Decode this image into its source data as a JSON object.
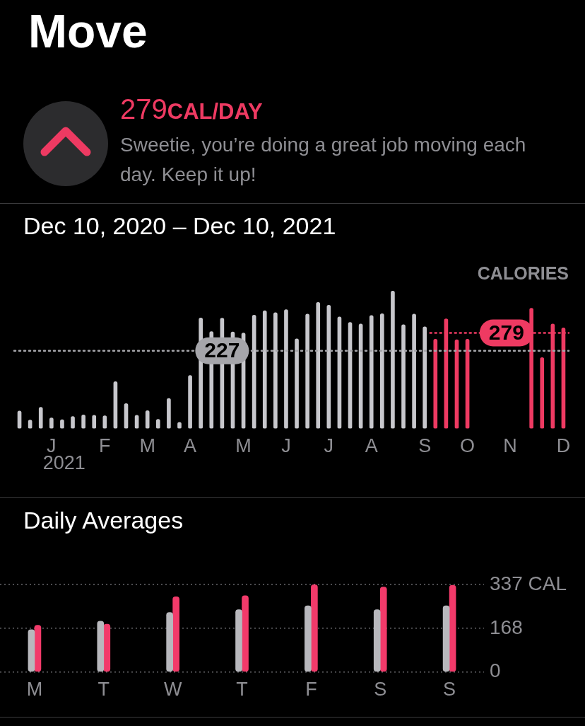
{
  "chart_data": [
    {
      "type": "other",
      "title": "Move",
      "annotations": [
        "279",
        "CAL/DAY",
        "Sweetie, you’re doing a great job moving each day. Keep it up!"
      ]
    },
    {
      "type": "bar",
      "title": "Dec 10, 2020 – Dec 10, 2021",
      "ylabel": "CALORIES",
      "stacked": true,
      "tick_labels": "x",
      "grid": false,
      "legend": false,
      "ylim": [
        0,
        404
      ],
      "categories": [
        null,
        null,
        null,
        "J",
        null,
        null,
        null,
        null,
        "F",
        null,
        null,
        null,
        "M",
        null,
        null,
        null,
        "A",
        null,
        null,
        null,
        null,
        "M",
        null,
        null,
        null,
        "J",
        null,
        null,
        null,
        "J",
        null,
        null,
        null,
        "A",
        null,
        null,
        null,
        null,
        "S",
        null,
        null,
        null,
        "O",
        null,
        null,
        null,
        "N",
        null,
        null,
        null,
        null,
        "D"
      ],
      "series": [
        {
          "color": "#c7c7cc",
          "values": [
            51,
            25,
            62,
            31,
            26,
            35,
            40,
            39,
            37,
            137,
            73,
            39,
            52,
            27,
            88,
            18,
            155,
            323,
            283,
            322,
            282,
            279,
            331,
            344,
            338,
            347,
            262,
            334,
            368,
            360,
            326,
            310,
            305,
            330,
            335,
            401,
            303,
            334,
            297,
            null,
            null,
            null,
            null,
            null,
            null,
            null,
            null,
            null,
            null,
            null,
            null,
            null
          ]
        },
        {
          "color": "#ee3a62",
          "values": [
            null,
            null,
            null,
            null,
            null,
            null,
            null,
            null,
            null,
            null,
            null,
            null,
            null,
            null,
            null,
            null,
            null,
            null,
            null,
            null,
            null,
            null,
            null,
            null,
            null,
            null,
            null,
            null,
            null,
            null,
            null,
            null,
            null,
            null,
            null,
            null,
            null,
            null,
            null,
            261,
            320,
            259,
            261,
            null,
            null,
            null,
            null,
            null,
            351,
            207,
            305,
            294
          ]
        }
      ],
      "ref_lines": [
        {
          "axis": "y",
          "value": 227,
          "label": "227",
          "color": "#a5a5aa",
          "line_style": "dotted"
        },
        {
          "axis": "y",
          "value": 279,
          "label": "279",
          "color": "#ee3a62",
          "line_style": "dotted"
        }
      ],
      "annotations": [
        "2021"
      ]
    },
    {
      "type": "bar",
      "title": "Daily Averages",
      "categories": [
        "M",
        "T",
        "W",
        "T",
        "F",
        "S",
        "S"
      ],
      "legend": false,
      "grid": "y",
      "ylim": [
        0,
        337
      ],
      "yticks": [
        0,
        168,
        {
          "value": 337,
          "label": "337 CAL"
        }
      ],
      "series": [
        {
          "color": "#b8b8bd",
          "values": [
            163,
            196,
            229,
            240,
            255,
            240,
            255
          ]
        },
        {
          "color": "#f23a6a",
          "values": [
            180,
            184,
            290,
            294,
            336,
            327,
            334
          ]
        }
      ]
    }
  ]
}
